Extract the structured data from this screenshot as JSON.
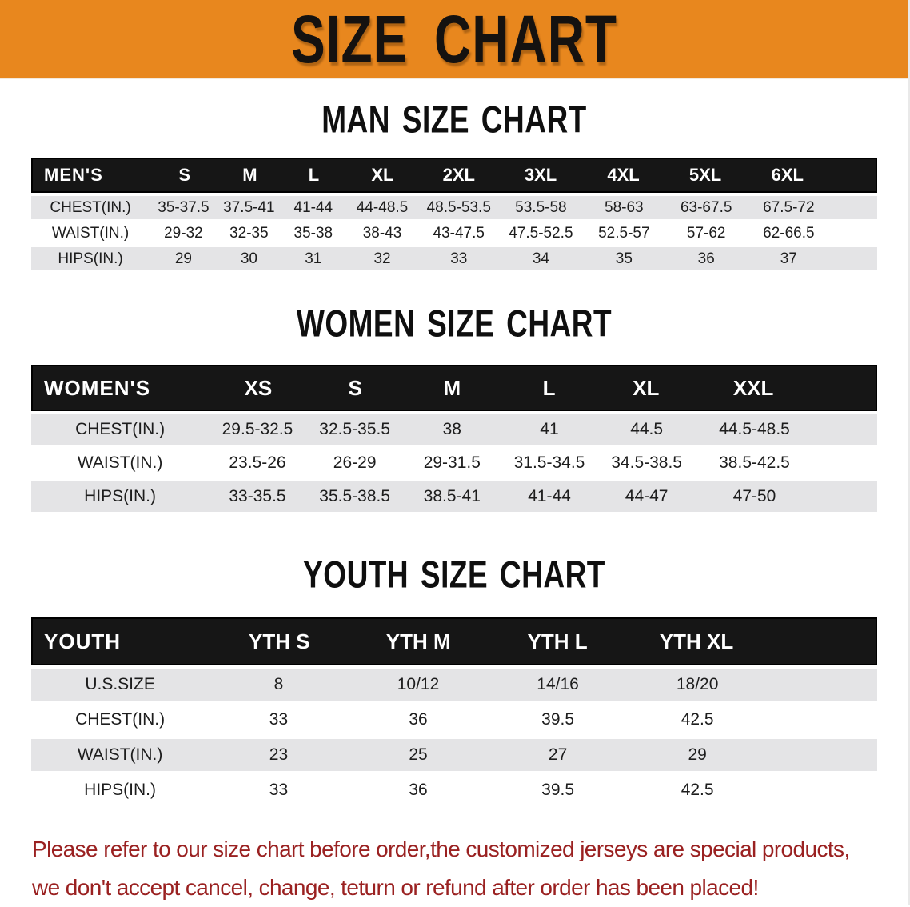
{
  "banner": {
    "title": "SIZE CHART"
  },
  "colors": {
    "banner_bg": "#E8871E",
    "band_bg": "#161616",
    "band_text": "#FFFFFF",
    "shaded_row_bg": "#E4E4E6",
    "body_text": "#1E1E1E",
    "footer_text": "#9A2121"
  },
  "sections": [
    {
      "heading": "MAN SIZE CHART",
      "table": {
        "id": "men",
        "label": "MEN'S",
        "columns": [
          "S",
          "M",
          "L",
          "XL",
          "2XL",
          "3XL",
          "4XL",
          "5XL",
          "6XL"
        ],
        "rows": [
          {
            "label": "CHEST(IN.)",
            "values": [
              "35-37.5",
              "37.5-41",
              "41-44",
              "44-48.5",
              "48.5-53.5",
              "53.5-58",
              "58-63",
              "63-67.5",
              "67.5-72"
            ]
          },
          {
            "label": "WAIST(IN.)",
            "values": [
              "29-32",
              "32-35",
              "35-38",
              "38-43",
              "43-47.5",
              "47.5-52.5",
              "52.5-57",
              "57-62",
              "62-66.5"
            ]
          },
          {
            "label": "HIPS(IN.)",
            "values": [
              "29",
              "30",
              "31",
              "32",
              "33",
              "34",
              "35",
              "36",
              "37"
            ]
          }
        ]
      }
    },
    {
      "heading": "WOMEN SIZE CHART",
      "table": {
        "id": "women",
        "label": "WOMEN'S",
        "columns": [
          "XS",
          "S",
          "M",
          "L",
          "XL",
          "XXL"
        ],
        "rows": [
          {
            "label": "CHEST(IN.)",
            "values": [
              "29.5-32.5",
              "32.5-35.5",
              "38",
              "41",
              "44.5",
              "44.5-48.5"
            ]
          },
          {
            "label": "WAIST(IN.)",
            "values": [
              "23.5-26",
              "26-29",
              "29-31.5",
              "31.5-34.5",
              "34.5-38.5",
              "38.5-42.5"
            ]
          },
          {
            "label": "HIPS(IN.)",
            "values": [
              "33-35.5",
              "35.5-38.5",
              "38.5-41",
              "41-44",
              "44-47",
              "47-50"
            ]
          }
        ]
      }
    },
    {
      "heading": "YOUTH SIZE CHART",
      "table": {
        "id": "youth",
        "label": "YOUTH",
        "columns": [
          "YTH S",
          "YTH M",
          "YTH L",
          "YTH XL"
        ],
        "rows": [
          {
            "label": "U.S.SIZE",
            "values": [
              "8",
              "10/12",
              "14/16",
              "18/20"
            ]
          },
          {
            "label": "CHEST(IN.)",
            "values": [
              "33",
              "36",
              "39.5",
              "42.5"
            ]
          },
          {
            "label": "WAIST(IN.)",
            "values": [
              "23",
              "25",
              "27",
              "29"
            ]
          },
          {
            "label": "HIPS(IN.)",
            "values": [
              "33",
              "36",
              "39.5",
              "42.5"
            ]
          }
        ]
      }
    }
  ],
  "footer": {
    "line1": "Please refer to our size chart before order,the customized jerseys are special products,",
    "line2": "we don't accept cancel, change, teturn or refund after order has been placed!"
  }
}
